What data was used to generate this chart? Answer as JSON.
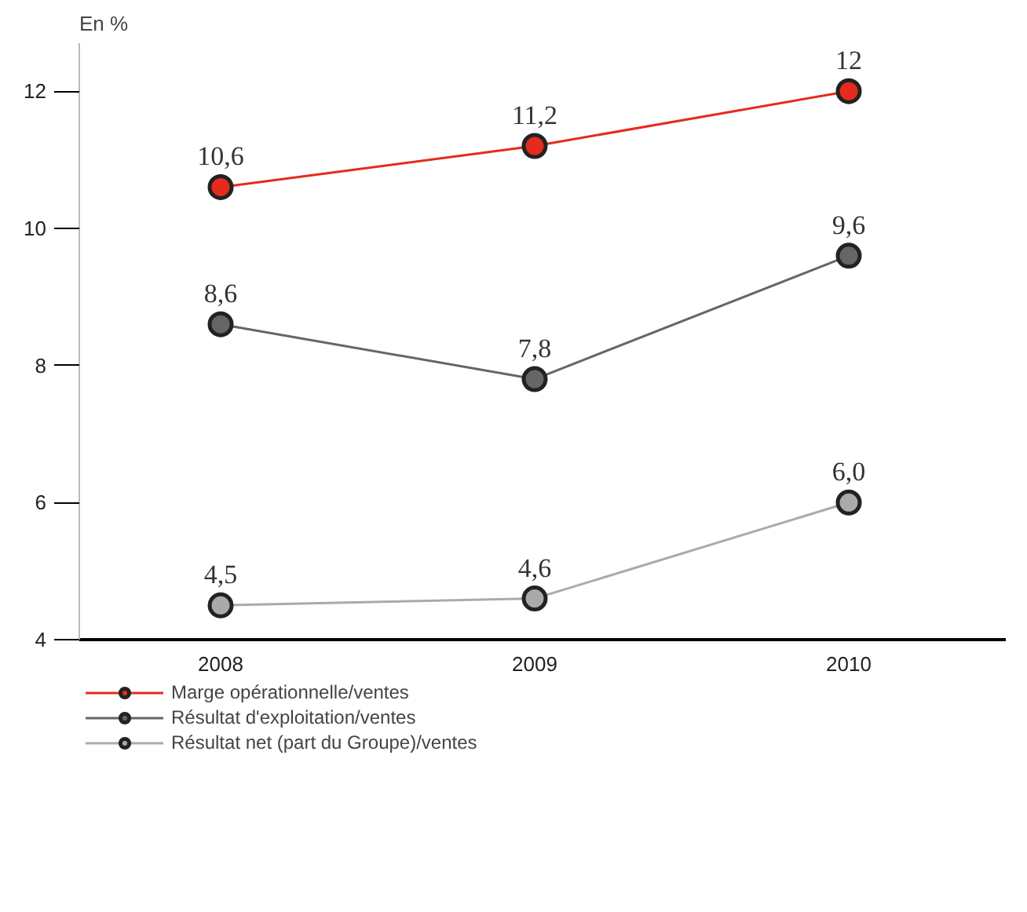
{
  "chart_data": {
    "type": "line",
    "ylabel": "En %",
    "categories": [
      "2008",
      "2009",
      "2010"
    ],
    "series": [
      {
        "name": "Marge opérationnelle/ventes",
        "color": "#e52b1e",
        "values": [
          10.6,
          11.2,
          12
        ],
        "value_labels": [
          "10,6",
          "11,2",
          "12"
        ]
      },
      {
        "name": "Résultat d'exploitation/ventes",
        "color": "#666666",
        "values": [
          8.6,
          7.8,
          9.6
        ],
        "value_labels": [
          "8,6",
          "7,8",
          "9,6"
        ]
      },
      {
        "name": "Résultat net (part du Groupe)/ventes",
        "color": "#aaaaaa",
        "values": [
          4.5,
          4.6,
          6.0
        ],
        "value_labels": [
          "4,5",
          "4,6",
          "6,0"
        ]
      }
    ],
    "ylim": [
      4,
      12.7
    ],
    "yticks": [
      4,
      6,
      8,
      10,
      12
    ],
    "grid": false,
    "legend": "bottom",
    "marker": "circle",
    "line_style": "solid"
  }
}
